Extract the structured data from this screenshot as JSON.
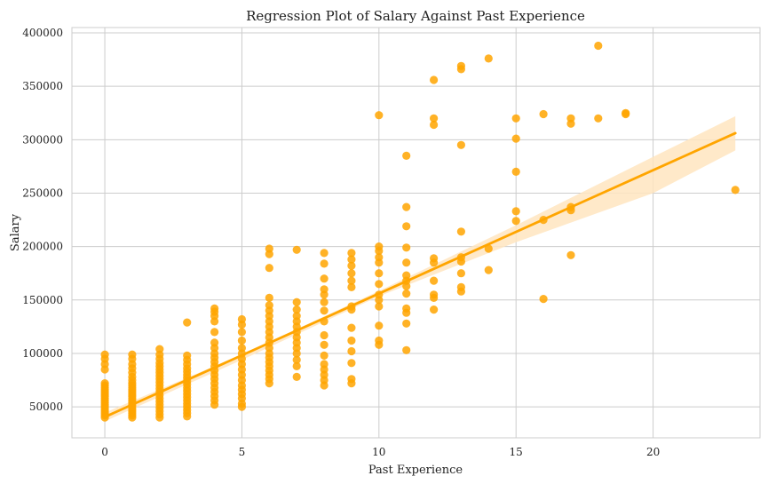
{
  "chart_data": {
    "type": "scatter",
    "title": "Regression Plot of Salary Against Past Experience",
    "xlabel": "Past Experience",
    "ylabel": "Salary",
    "xlim": [
      -1.2,
      23.9
    ],
    "ylim": [
      21000,
      405000
    ],
    "xticks": [
      0,
      5,
      10,
      15,
      20
    ],
    "yticks": [
      50000,
      100000,
      150000,
      200000,
      250000,
      300000,
      350000,
      400000
    ],
    "grid": true,
    "point_color": "#FFA500",
    "line_color": "#FFA500",
    "band_color": "#FFE5BF",
    "regression": {
      "intercept": 40500,
      "slope": 11550,
      "x_range": [
        0,
        23
      ]
    },
    "confidence_band": {
      "x": [
        0,
        5,
        10,
        15,
        20,
        23
      ],
      "lower": [
        36500,
        94000,
        153500,
        204000,
        250000,
        290000
      ],
      "upper": [
        44500,
        99000,
        158500,
        220000,
        284000,
        322000
      ]
    },
    "points": [
      [
        0,
        40000
      ],
      [
        0,
        42000
      ],
      [
        0,
        44000
      ],
      [
        0,
        46000
      ],
      [
        0,
        48000
      ],
      [
        0,
        50000
      ],
      [
        0,
        52000
      ],
      [
        0,
        54000
      ],
      [
        0,
        56000
      ],
      [
        0,
        58000
      ],
      [
        0,
        60000
      ],
      [
        0,
        62000
      ],
      [
        0,
        64000
      ],
      [
        0,
        66000
      ],
      [
        0,
        68000
      ],
      [
        0,
        70000
      ],
      [
        0,
        72000
      ],
      [
        0,
        85000
      ],
      [
        0,
        90000
      ],
      [
        0,
        95000
      ],
      [
        0,
        99000
      ],
      [
        1,
        40000
      ],
      [
        1,
        42000
      ],
      [
        1,
        44000
      ],
      [
        1,
        46000
      ],
      [
        1,
        48000
      ],
      [
        1,
        50000
      ],
      [
        1,
        52000
      ],
      [
        1,
        54000
      ],
      [
        1,
        56000
      ],
      [
        1,
        58000
      ],
      [
        1,
        60000
      ],
      [
        1,
        62000
      ],
      [
        1,
        64000
      ],
      [
        1,
        66000
      ],
      [
        1,
        68000
      ],
      [
        1,
        70000
      ],
      [
        1,
        72000
      ],
      [
        1,
        75000
      ],
      [
        1,
        78000
      ],
      [
        1,
        82000
      ],
      [
        1,
        86000
      ],
      [
        1,
        90000
      ],
      [
        1,
        95000
      ],
      [
        1,
        99000
      ],
      [
        2,
        40000
      ],
      [
        2,
        43000
      ],
      [
        2,
        46000
      ],
      [
        2,
        49000
      ],
      [
        2,
        52000
      ],
      [
        2,
        55000
      ],
      [
        2,
        58000
      ],
      [
        2,
        61000
      ],
      [
        2,
        64000
      ],
      [
        2,
        67000
      ],
      [
        2,
        70000
      ],
      [
        2,
        73000
      ],
      [
        2,
        76000
      ],
      [
        2,
        79000
      ],
      [
        2,
        82000
      ],
      [
        2,
        85000
      ],
      [
        2,
        88000
      ],
      [
        2,
        91000
      ],
      [
        2,
        95000
      ],
      [
        2,
        99000
      ],
      [
        2,
        104000
      ],
      [
        3,
        41000
      ],
      [
        3,
        44000
      ],
      [
        3,
        47000
      ],
      [
        3,
        50000
      ],
      [
        3,
        53000
      ],
      [
        3,
        56000
      ],
      [
        3,
        59000
      ],
      [
        3,
        62000
      ],
      [
        3,
        65000
      ],
      [
        3,
        68000
      ],
      [
        3,
        71000
      ],
      [
        3,
        74000
      ],
      [
        3,
        77000
      ],
      [
        3,
        80000
      ],
      [
        3,
        83000
      ],
      [
        3,
        86000
      ],
      [
        3,
        90000
      ],
      [
        3,
        94000
      ],
      [
        3,
        98000
      ],
      [
        3,
        129000
      ],
      [
        4,
        52000
      ],
      [
        4,
        56000
      ],
      [
        4,
        60000
      ],
      [
        4,
        64000
      ],
      [
        4,
        68000
      ],
      [
        4,
        72000
      ],
      [
        4,
        76000
      ],
      [
        4,
        80000
      ],
      [
        4,
        84000
      ],
      [
        4,
        88000
      ],
      [
        4,
        92000
      ],
      [
        4,
        96000
      ],
      [
        4,
        100000
      ],
      [
        4,
        105000
      ],
      [
        4,
        110000
      ],
      [
        4,
        120000
      ],
      [
        4,
        130000
      ],
      [
        4,
        135000
      ],
      [
        4,
        139000
      ],
      [
        4,
        142000
      ],
      [
        5,
        50000
      ],
      [
        5,
        53000
      ],
      [
        5,
        58000
      ],
      [
        5,
        62000
      ],
      [
        5,
        66000
      ],
      [
        5,
        70000
      ],
      [
        5,
        75000
      ],
      [
        5,
        80000
      ],
      [
        5,
        85000
      ],
      [
        5,
        90000
      ],
      [
        5,
        95000
      ],
      [
        5,
        100000
      ],
      [
        5,
        105000
      ],
      [
        5,
        112000
      ],
      [
        5,
        120000
      ],
      [
        5,
        127000
      ],
      [
        5,
        132000
      ],
      [
        6,
        72000
      ],
      [
        6,
        76000
      ],
      [
        6,
        80000
      ],
      [
        6,
        84000
      ],
      [
        6,
        88000
      ],
      [
        6,
        92000
      ],
      [
        6,
        96000
      ],
      [
        6,
        100000
      ],
      [
        6,
        105000
      ],
      [
        6,
        110000
      ],
      [
        6,
        115000
      ],
      [
        6,
        120000
      ],
      [
        6,
        125000
      ],
      [
        6,
        130000
      ],
      [
        6,
        135000
      ],
      [
        6,
        140000
      ],
      [
        6,
        145000
      ],
      [
        6,
        152000
      ],
      [
        6,
        180000
      ],
      [
        6,
        193000
      ],
      [
        6,
        198000
      ],
      [
        7,
        78000
      ],
      [
        7,
        88000
      ],
      [
        7,
        94000
      ],
      [
        7,
        100000
      ],
      [
        7,
        105000
      ],
      [
        7,
        110000
      ],
      [
        7,
        115000
      ],
      [
        7,
        120000
      ],
      [
        7,
        125000
      ],
      [
        7,
        130000
      ],
      [
        7,
        135000
      ],
      [
        7,
        141000
      ],
      [
        7,
        148000
      ],
      [
        7,
        197000
      ],
      [
        8,
        70000
      ],
      [
        8,
        75000
      ],
      [
        8,
        80000
      ],
      [
        8,
        85000
      ],
      [
        8,
        90000
      ],
      [
        8,
        98000
      ],
      [
        8,
        108000
      ],
      [
        8,
        117000
      ],
      [
        8,
        130000
      ],
      [
        8,
        140000
      ],
      [
        8,
        148000
      ],
      [
        8,
        155000
      ],
      [
        8,
        160000
      ],
      [
        8,
        170000
      ],
      [
        8,
        184000
      ],
      [
        8,
        194000
      ],
      [
        9,
        72000
      ],
      [
        9,
        76000
      ],
      [
        9,
        91000
      ],
      [
        9,
        102000
      ],
      [
        9,
        112000
      ],
      [
        9,
        124000
      ],
      [
        9,
        141000
      ],
      [
        9,
        144000
      ],
      [
        9,
        162000
      ],
      [
        9,
        168000
      ],
      [
        9,
        175000
      ],
      [
        9,
        182000
      ],
      [
        9,
        188000
      ],
      [
        9,
        194000
      ],
      [
        10,
        108000
      ],
      [
        10,
        112000
      ],
      [
        10,
        126000
      ],
      [
        10,
        144000
      ],
      [
        10,
        150000
      ],
      [
        10,
        155000
      ],
      [
        10,
        165000
      ],
      [
        10,
        175000
      ],
      [
        10,
        185000
      ],
      [
        10,
        190000
      ],
      [
        10,
        196000
      ],
      [
        10,
        200000
      ],
      [
        10,
        323000
      ],
      [
        11,
        103000
      ],
      [
        11,
        128000
      ],
      [
        11,
        138000
      ],
      [
        11,
        142000
      ],
      [
        11,
        156000
      ],
      [
        11,
        163000
      ],
      [
        11,
        168000
      ],
      [
        11,
        173000
      ],
      [
        11,
        185000
      ],
      [
        11,
        199000
      ],
      [
        11,
        219000
      ],
      [
        11,
        237000
      ],
      [
        11,
        285000
      ],
      [
        12,
        141000
      ],
      [
        12,
        152000
      ],
      [
        12,
        155000
      ],
      [
        12,
        168000
      ],
      [
        12,
        185000
      ],
      [
        12,
        189000
      ],
      [
        12,
        314000
      ],
      [
        12,
        320000
      ],
      [
        12,
        356000
      ],
      [
        13,
        158000
      ],
      [
        13,
        162000
      ],
      [
        13,
        175000
      ],
      [
        13,
        186000
      ],
      [
        13,
        190000
      ],
      [
        13,
        214000
      ],
      [
        13,
        295000
      ],
      [
        13,
        366000
      ],
      [
        13,
        369000
      ],
      [
        14,
        178000
      ],
      [
        14,
        198000
      ],
      [
        14,
        376000
      ],
      [
        15,
        224000
      ],
      [
        15,
        233000
      ],
      [
        15,
        270000
      ],
      [
        15,
        301000
      ],
      [
        15,
        320000
      ],
      [
        16,
        151000
      ],
      [
        16,
        225000
      ],
      [
        16,
        324000
      ],
      [
        17,
        192000
      ],
      [
        17,
        234000
      ],
      [
        17,
        237000
      ],
      [
        17,
        315000
      ],
      [
        17,
        320000
      ],
      [
        18,
        320000
      ],
      [
        18,
        388000
      ],
      [
        19,
        324000
      ],
      [
        19,
        325000
      ],
      [
        23,
        253000
      ]
    ]
  }
}
